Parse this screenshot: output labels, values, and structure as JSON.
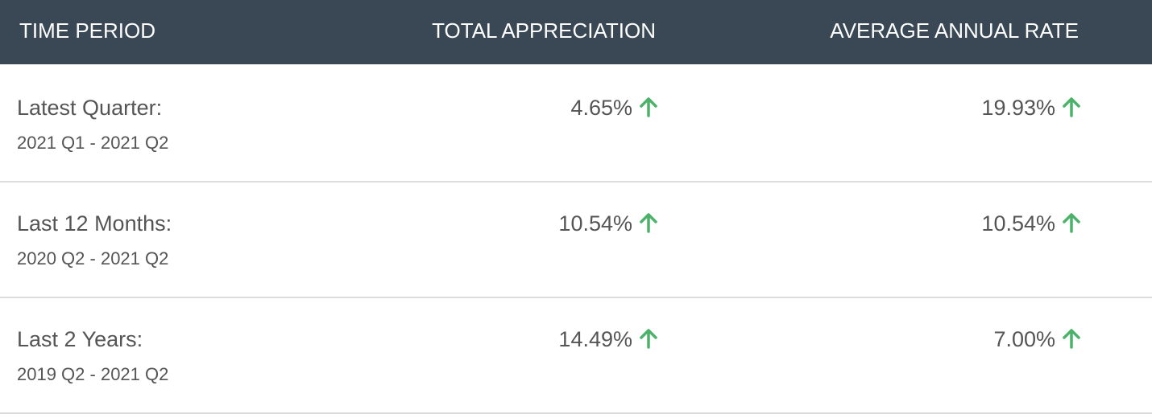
{
  "table": {
    "header": [
      "TIME PERIOD",
      "TOTAL APPRECIATION",
      "AVERAGE ANNUAL RATE"
    ],
    "rows": [
      [
        "Latest Quarter:",
        "2021 Q1 - 2021 Q2",
        "4.65%",
        "19.93%"
      ],
      [
        "Last 12 Months:",
        "2020 Q2 - 2021 Q2",
        "10.54%",
        "10.54%"
      ],
      [
        "Last 2 Years:",
        "2019 Q2 - 2021 Q2",
        "14.49%",
        "7.00%"
      ]
    ]
  }
}
